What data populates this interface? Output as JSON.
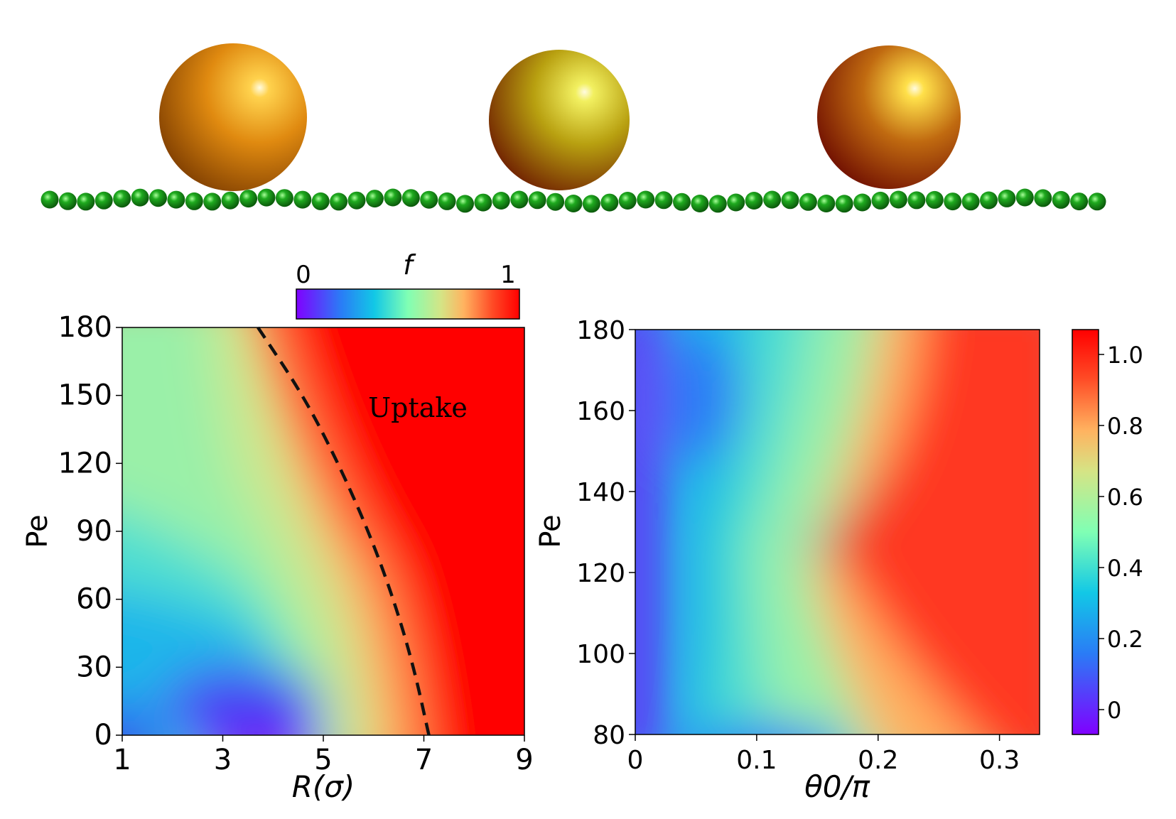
{
  "illustration": {
    "particles": [
      {
        "name": "particle-left",
        "colors": [
          "#ffd24d",
          "#e08a10",
          "#7a3a00"
        ]
      },
      {
        "name": "particle-middle",
        "colors": [
          "#f2f060",
          "#b8a010",
          "#6a1600"
        ]
      },
      {
        "name": "particle-right",
        "colors": [
          "#ffe04a",
          "#c06a10",
          "#6a0800"
        ]
      }
    ],
    "bead_color": "#1faa1f",
    "bead_count": 59
  },
  "chart_data": [
    {
      "type": "heatmap",
      "panel": "left",
      "title": "",
      "xlabel": "R(σ)",
      "ylabel": "Pe",
      "xlim": [
        1,
        9
      ],
      "ylim": [
        0,
        180
      ],
      "xticks": [
        1,
        3,
        5,
        7,
        9
      ],
      "yticks": [
        0,
        30,
        60,
        90,
        120,
        150,
        180
      ],
      "colormap": "rainbow",
      "colorbar": {
        "label": "f",
        "min_label": "0",
        "max_label": "1",
        "range": [
          0,
          1
        ],
        "orientation": "horizontal",
        "placement": "top"
      },
      "annotation": "Uptake",
      "boundary_curve": {
        "style": "dashed",
        "color": "#000000",
        "points": [
          [
            3.7,
            180
          ],
          [
            4.6,
            150
          ],
          [
            5.3,
            120
          ],
          [
            5.9,
            90
          ],
          [
            6.4,
            60
          ],
          [
            6.8,
            30
          ],
          [
            7.1,
            0
          ]
        ]
      },
      "field_description_rows": [
        {
          "Pe": 180,
          "values": [
            [
              1,
              0.66
            ],
            [
              2.5,
              0.62
            ],
            [
              3.3,
              0.75
            ],
            [
              3.7,
              1.0
            ],
            [
              9,
              1.0
            ]
          ]
        },
        {
          "Pe": 120,
          "values": [
            [
              1,
              0.52
            ],
            [
              3,
              0.55
            ],
            [
              4.5,
              0.7
            ],
            [
              5.3,
              1.0
            ],
            [
              9,
              1.0
            ]
          ]
        },
        {
          "Pe": 60,
          "values": [
            [
              1,
              0.28
            ],
            [
              3,
              0.3
            ],
            [
              5,
              0.5
            ],
            [
              6.4,
              1.0
            ],
            [
              9,
              1.0
            ]
          ]
        },
        {
          "Pe": 0,
          "values": [
            [
              1,
              0.1
            ],
            [
              2,
              0.2
            ],
            [
              3.8,
              0.0
            ],
            [
              5,
              0.2
            ],
            [
              6.5,
              0.6
            ],
            [
              7.1,
              1.0
            ],
            [
              9,
              1.0
            ]
          ]
        }
      ]
    },
    {
      "type": "heatmap",
      "panel": "right",
      "title": "",
      "xlabel": "θ0/π",
      "ylabel": "Pe",
      "xlim": [
        0,
        0.333
      ],
      "ylim": [
        80,
        180
      ],
      "xticks": [
        0,
        0.1,
        0.2,
        0.3
      ],
      "xtick_labels": [
        "0",
        "0.1",
        "0.2",
        "0.3"
      ],
      "yticks": [
        80,
        100,
        120,
        140,
        160,
        180
      ],
      "colormap": "rainbow",
      "colorbar": {
        "orientation": "vertical",
        "placement": "right",
        "range": [
          -0.07,
          1.07
        ],
        "ticks": [
          0,
          0.2,
          0.4,
          0.6,
          0.8,
          1.0
        ],
        "tick_labels": [
          "0",
          "0.2",
          "0.4",
          "0.6",
          "0.8",
          "1.0"
        ]
      },
      "field_description_rows": [
        {
          "Pe": 180,
          "values": [
            [
              0,
              0.05
            ],
            [
              0.05,
              0.15
            ],
            [
              0.15,
              0.4
            ],
            [
              0.23,
              0.7
            ],
            [
              0.27,
              0.95
            ],
            [
              0.333,
              0.95
            ]
          ]
        },
        {
          "Pe": 160,
          "values": [
            [
              0,
              0.05
            ],
            [
              0.05,
              0.2
            ],
            [
              0.15,
              0.35
            ],
            [
              0.2,
              0.6
            ],
            [
              0.25,
              0.95
            ],
            [
              0.333,
              0.95
            ]
          ]
        },
        {
          "Pe": 125,
          "values": [
            [
              0,
              0.1
            ],
            [
              0.05,
              0.3
            ],
            [
              0.12,
              0.55
            ],
            [
              0.16,
              0.8
            ],
            [
              0.2,
              0.95
            ],
            [
              0.333,
              0.95
            ]
          ]
        },
        {
          "Pe": 100,
          "values": [
            [
              0,
              0.05
            ],
            [
              0.05,
              0.2
            ],
            [
              0.15,
              0.4
            ],
            [
              0.2,
              0.7
            ],
            [
              0.25,
              0.95
            ],
            [
              0.333,
              0.95
            ]
          ]
        },
        {
          "Pe": 80,
          "values": [
            [
              0,
              0.05
            ],
            [
              0.1,
              0.25
            ],
            [
              0.2,
              0.45
            ],
            [
              0.28,
              0.75
            ],
            [
              0.333,
              0.9
            ]
          ]
        }
      ]
    }
  ]
}
